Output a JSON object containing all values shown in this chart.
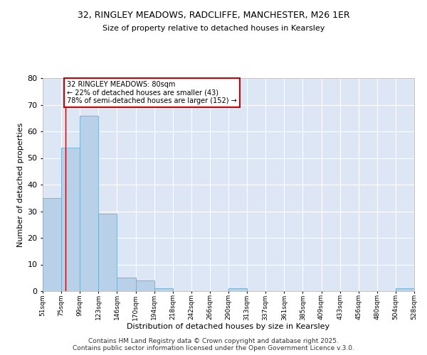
{
  "title_line1": "32, RINGLEY MEADOWS, RADCLIFFE, MANCHESTER, M26 1ER",
  "title_line2": "Size of property relative to detached houses in Kearsley",
  "xlabel": "Distribution of detached houses by size in Kearsley",
  "ylabel": "Number of detached properties",
  "bar_values": [
    35,
    54,
    66,
    29,
    5,
    4,
    1,
    0,
    0,
    0,
    1,
    0,
    0,
    0,
    0,
    0,
    0,
    0,
    0,
    1
  ],
  "bin_labels": [
    "51sqm",
    "75sqm",
    "99sqm",
    "123sqm",
    "146sqm",
    "170sqm",
    "194sqm",
    "218sqm",
    "242sqm",
    "266sqm",
    "290sqm",
    "313sqm",
    "337sqm",
    "361sqm",
    "385sqm",
    "409sqm",
    "433sqm",
    "456sqm",
    "480sqm",
    "504sqm",
    "528sqm"
  ],
  "bar_color": "#b8d0e8",
  "bar_edge_color": "#6aaed6",
  "background_color": "#dce6f5",
  "grid_color": "#ffffff",
  "annotation_text": "32 RINGLEY MEADOWS: 80sqm\n← 22% of detached houses are smaller (43)\n78% of semi-detached houses are larger (152) →",
  "annotation_box_color": "#ffffff",
  "annotation_box_edge": "#cc0000",
  "ylim": [
    0,
    80
  ],
  "yticks": [
    0,
    10,
    20,
    30,
    40,
    50,
    60,
    70,
    80
  ],
  "footer_line1": "Contains HM Land Registry data © Crown copyright and database right 2025.",
  "footer_line2": "Contains public sector information licensed under the Open Government Licence v.3.0."
}
